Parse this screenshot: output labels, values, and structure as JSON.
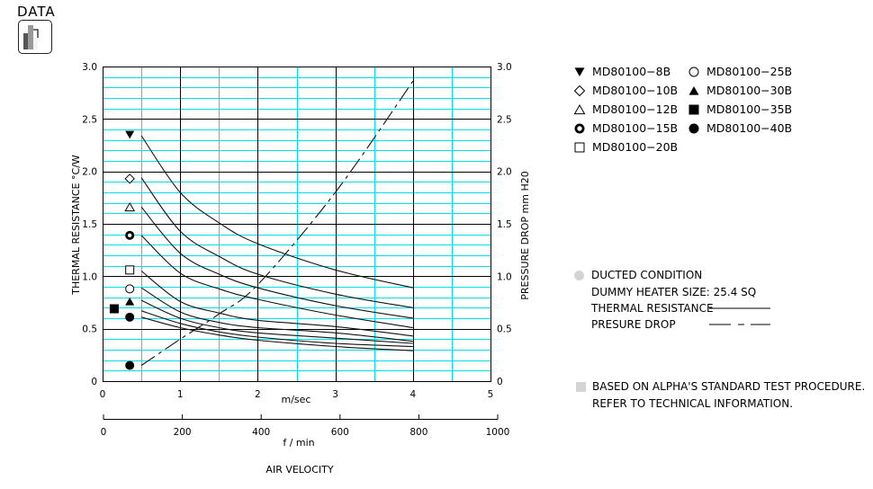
{
  "header": {
    "title": "DATA",
    "icon": "bar-chart-icon"
  },
  "chart_data": {
    "type": "line",
    "title": "",
    "xlabel": "AIR VELOCITY",
    "x_units_primary": "m/sec",
    "x_units_secondary": "f / min",
    "ylabel_left": "THERMAL  RESISTANCE   °C/W",
    "ylabel_right": "PRESSURE  DROP    mm H20",
    "xlim": [
      0,
      5
    ],
    "ylim_left": [
      0,
      3.0
    ],
    "ylim_right": [
      0,
      3.0
    ],
    "x_ticks": [
      "0",
      "1",
      "2",
      "3",
      "4",
      "5"
    ],
    "x_ticks_secondary": [
      "0",
      "200",
      "400",
      "600",
      "800",
      "1000"
    ],
    "y_ticks_left": [
      "0",
      "0.5",
      "1.0",
      "1.5",
      "2.0",
      "2.5",
      "3.0"
    ],
    "y_ticks_right": [
      "0",
      "0.5",
      "1.0",
      "1.5",
      "2.0",
      "2.5",
      "3.0"
    ],
    "grid": true,
    "grid_minor_color": "#00e0e8",
    "grid_major_color": "#000000",
    "x": [
      0.5,
      1.0,
      1.5,
      2.0,
      3.0,
      4.0
    ],
    "series": [
      {
        "name": "MD80100-8B",
        "marker": "triangle-down-filled",
        "axis": "left",
        "style": "solid",
        "values": [
          2.34,
          1.8,
          1.51,
          1.31,
          1.06,
          0.89
        ]
      },
      {
        "name": "MD80100-10B",
        "marker": "diamond-open",
        "axis": "left",
        "style": "solid",
        "values": [
          1.94,
          1.43,
          1.19,
          1.02,
          0.83,
          0.7
        ]
      },
      {
        "name": "MD80100-12B",
        "marker": "triangle-up-open",
        "axis": "left",
        "style": "solid",
        "values": [
          1.66,
          1.22,
          1.02,
          0.89,
          0.72,
          0.6
        ]
      },
      {
        "name": "MD80100-15B",
        "marker": "circle-bold",
        "axis": "left",
        "style": "solid",
        "values": [
          1.39,
          1.03,
          0.88,
          0.78,
          0.63,
          0.51
        ]
      },
      {
        "name": "MD80100-20B",
        "marker": "square-open",
        "axis": "left",
        "style": "solid",
        "values": [
          1.05,
          0.76,
          0.65,
          0.58,
          0.52,
          0.43
        ]
      },
      {
        "name": "MD80100-25B",
        "marker": "circle-open",
        "axis": "left",
        "style": "solid",
        "values": [
          0.89,
          0.66,
          0.56,
          0.51,
          0.46,
          0.38
        ]
      },
      {
        "name": "MD80100-30B",
        "marker": "triangle-up-filled",
        "axis": "left",
        "style": "solid",
        "values": [
          0.77,
          0.6,
          0.51,
          0.46,
          0.41,
          0.36
        ]
      },
      {
        "name": "MD80100-35B",
        "marker": "square-filled",
        "axis": "left",
        "style": "solid",
        "values": [
          0.67,
          0.55,
          0.47,
          0.42,
          0.36,
          0.33
        ]
      },
      {
        "name": "MD80100-40B",
        "marker": "circle-filled",
        "axis": "left",
        "style": "solid",
        "values": [
          0.61,
          0.51,
          0.44,
          0.39,
          0.33,
          0.29
        ]
      },
      {
        "name": "PRESURE DROP",
        "marker": "circle-filled",
        "axis": "right",
        "style": "dash-dot",
        "values": [
          0.15,
          0.4,
          0.64,
          0.92,
          1.8,
          2.86
        ]
      }
    ],
    "marker_positions": [
      {
        "series": "MD80100-8B",
        "x": 0.35,
        "y": 2.35
      },
      {
        "series": "MD80100-10B",
        "x": 0.35,
        "y": 1.93
      },
      {
        "series": "MD80100-12B",
        "x": 0.35,
        "y": 1.66
      },
      {
        "series": "MD80100-15B",
        "x": 0.35,
        "y": 1.39
      },
      {
        "series": "MD80100-20B",
        "x": 0.35,
        "y": 1.06
      },
      {
        "series": "MD80100-25B",
        "x": 0.35,
        "y": 0.88
      },
      {
        "series": "MD80100-30B",
        "x": 0.35,
        "y": 0.76
      },
      {
        "series": "MD80100-35B",
        "x": 0.15,
        "y": 0.69
      },
      {
        "series": "MD80100-40B",
        "x": 0.35,
        "y": 0.61
      },
      {
        "series": "PRESURE DROP",
        "x": 0.35,
        "y": 0.15
      }
    ],
    "legend_position": "right"
  },
  "legend": {
    "col1": [
      {
        "label": "MD80100-8B",
        "marker": "triangle-down-filled"
      },
      {
        "label": "MD80100-10B",
        "marker": "diamond-open"
      },
      {
        "label": "MD80100-12B",
        "marker": "triangle-up-open"
      },
      {
        "label": "MD80100-15B",
        "marker": "circle-bold"
      },
      {
        "label": "MD80100-20B",
        "marker": "square-open"
      }
    ],
    "col2": [
      {
        "label": "MD80100-25B",
        "marker": "circle-open"
      },
      {
        "label": "MD80100-30B",
        "marker": "triangle-up-filled"
      },
      {
        "label": "MD80100-35B",
        "marker": "square-filled"
      },
      {
        "label": "MD80100-40B",
        "marker": "circle-filled"
      }
    ]
  },
  "notes": {
    "ducted": "DUCTED CONDITION",
    "heater": "DUMMY HEATER SIZE: 25.4 SQ",
    "thermal": "THERMAL RESISTANCE",
    "pressure": "PRESURE DROP",
    "procedure": "BASED ON ALPHA'S STANDARD TEST PROCEDURE.",
    "refer": "REFER TO TECHNICAL INFORMATION."
  }
}
